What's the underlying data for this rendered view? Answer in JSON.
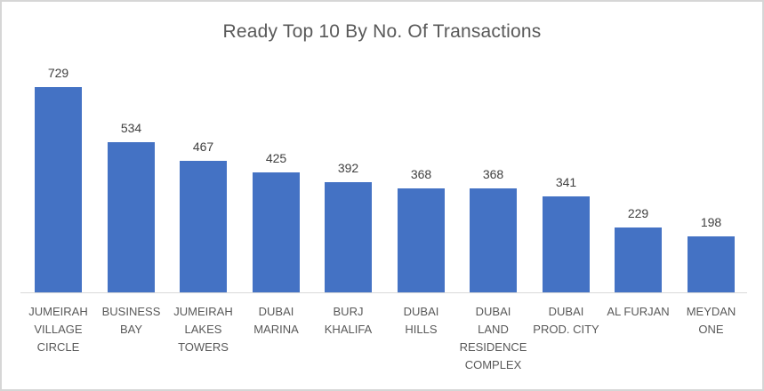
{
  "chart_data": {
    "type": "bar",
    "title": "Ready Top 10 By No. Of Transactions",
    "categories": [
      "JUMEIRAH VILLAGE CIRCLE",
      "BUSINESS BAY",
      "JUMEIRAH LAKES TOWERS",
      "DUBAI MARINA",
      "BURJ KHALIFA",
      "DUBAI HILLS",
      "DUBAI LAND RESIDENCE COMPLEX",
      "DUBAI PROD. CITY",
      "AL FURJAN",
      "MEYDAN ONE"
    ],
    "category_lines": [
      [
        "JUMEIRAH",
        "VILLAGE",
        "CIRCLE"
      ],
      [
        "BUSINESS",
        "BAY"
      ],
      [
        "JUMEIRAH",
        "LAKES",
        "TOWERS"
      ],
      [
        "DUBAI",
        "MARINA"
      ],
      [
        "BURJ",
        "KHALIFA"
      ],
      [
        "DUBAI",
        "HILLS"
      ],
      [
        "DUBAI",
        "LAND",
        "RESIDENCE",
        "COMPLEX"
      ],
      [
        "DUBAI",
        "PROD. CITY"
      ],
      [
        "AL FURJAN"
      ],
      [
        "MEYDAN",
        "ONE"
      ]
    ],
    "values": [
      729,
      534,
      467,
      425,
      392,
      368,
      368,
      341,
      229,
      198
    ],
    "xlabel": "",
    "ylabel": "",
    "ylim": [
      0,
      729
    ],
    "grid": false,
    "legend": "none",
    "data_labels": true,
    "colors": {
      "bar_fill": "#4472C4",
      "axis_line": "#D9D9D9",
      "title_text": "#595959",
      "value_label_text": "#404040",
      "category_label_text": "#595959",
      "background": "#FFFFFF",
      "frame_border": "#D6D6D6"
    }
  }
}
